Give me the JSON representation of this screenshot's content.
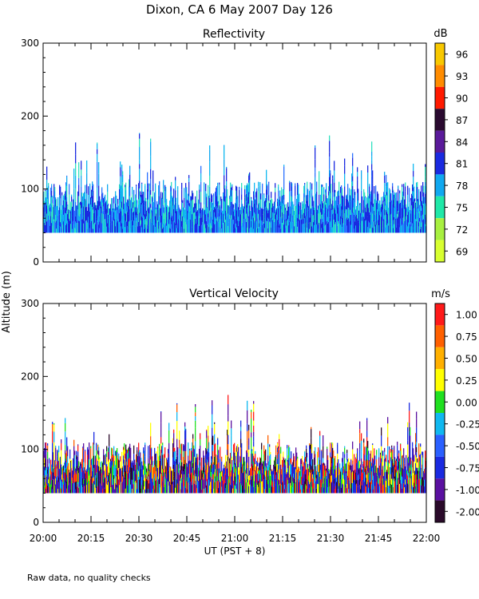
{
  "header": {
    "title": "Dixon, CA  6 May 2007  Day 126"
  },
  "shared_axes": {
    "ylabel": "Altitude (m)",
    "xlabel": "UT  (PST + 8)",
    "x_ticks_major": [
      "20:00",
      "20:15",
      "20:30",
      "20:45",
      "21:00",
      "21:15",
      "21:30",
      "21:45",
      "22:00"
    ],
    "x_range_minutes": [
      0,
      120
    ],
    "ylim": [
      0,
      300
    ],
    "y_ticks": [
      0,
      100,
      200,
      300
    ]
  },
  "footer": {
    "note": "Raw data, no quality checks"
  },
  "chart_data": [
    {
      "type": "heatmap",
      "title": "Reflectivity",
      "colorbar_unit": "dB",
      "colorbar_labels": [
        "96",
        "93",
        "90",
        "87",
        "84",
        "81",
        "78",
        "75",
        "72",
        "69"
      ],
      "colorbar_colors": [
        "#f8c800",
        "#ff8c00",
        "#ff1a00",
        "#2a0a30",
        "#5a1a9a",
        "#1a2ae0",
        "#10a8f0",
        "#20e8a8",
        "#a8f040",
        "#d8ff30"
      ],
      "data_min_altitude": 40,
      "typical_echo_top": 100,
      "max_echo_top": 180,
      "palette": [
        "#10b8f0",
        "#1a2ae0",
        "#30e0c0",
        "#2a70ff",
        "#10a8f0",
        "#1a2ae0"
      ]
    },
    {
      "type": "heatmap",
      "title": "Vertical Velocity",
      "colorbar_unit": "m/s",
      "colorbar_labels": [
        "1.00",
        "0.75",
        "0.50",
        "0.25",
        "0.00",
        "-0.25",
        "-0.50",
        "-0.75",
        "-1.00",
        "-2.00"
      ],
      "colorbar_colors": [
        "#ff1a1a",
        "#ff6000",
        "#ffb000",
        "#ffff00",
        "#20e020",
        "#10b8f0",
        "#2a60ff",
        "#1a2ae0",
        "#5a10a0",
        "#2a0a2a"
      ],
      "data_min_altitude": 40,
      "typical_echo_top": 100,
      "max_echo_top": 180,
      "palette": [
        "#1a2ae0",
        "#5a10a0",
        "#2a0a2a",
        "#10b8f0",
        "#20e020",
        "#ffff00",
        "#ff6000",
        "#ff1a1a",
        "#1a2ae0",
        "#5a10a0"
      ]
    }
  ]
}
